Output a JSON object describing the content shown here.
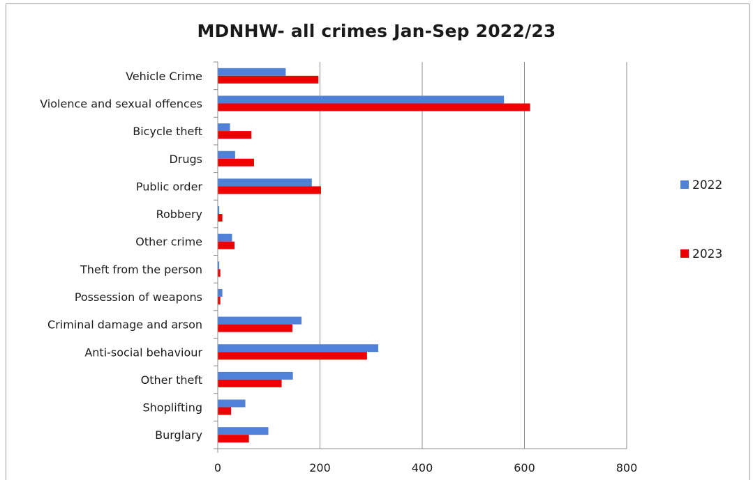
{
  "chart_data": {
    "type": "bar",
    "orientation": "horizontal",
    "title": "MDNHW- all crimes Jan-Sep 2022/23",
    "categories": [
      "Vehicle Crime",
      "Violence and sexual offences",
      "Bicycle theft",
      "Drugs",
      "Public order",
      "Robbery",
      "Other crime",
      "Theft from the person",
      "Possession of weapons",
      "Criminal damage and arson",
      "Anti-social behaviour",
      "Other theft",
      "Shoplifting",
      "Burglary"
    ],
    "series": [
      {
        "name": "2022",
        "color": "#4f81d8",
        "values": [
          133,
          560,
          24,
          34,
          184,
          3,
          28,
          3,
          9,
          164,
          314,
          147,
          54,
          99
        ]
      },
      {
        "name": "2023",
        "color": "#ee0000",
        "values": [
          197,
          611,
          66,
          71,
          202,
          9,
          33,
          5,
          5,
          146,
          292,
          125,
          26,
          61
        ]
      }
    ],
    "xlim": [
      0,
      800
    ],
    "xticks": [
      0,
      200,
      400,
      600,
      800
    ],
    "grid": "vertical",
    "legend_position": "right"
  }
}
